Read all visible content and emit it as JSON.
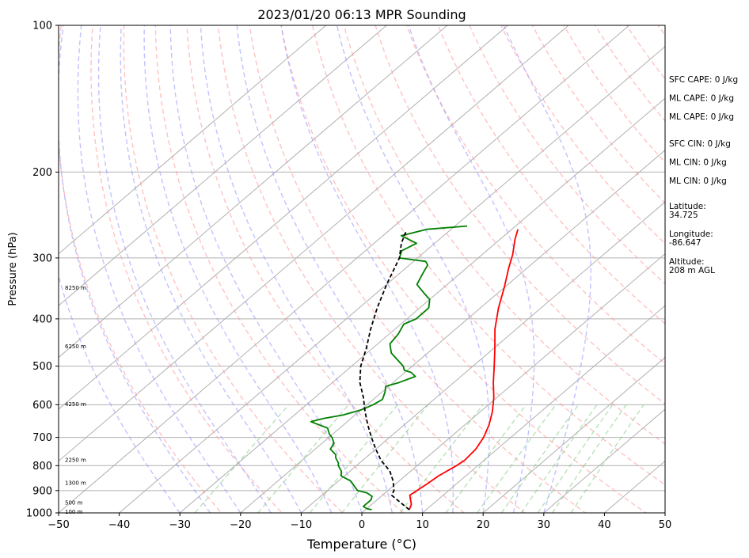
{
  "chart_data": {
    "type": "line",
    "title": "2023/01/20 06:13 MPR Sounding",
    "xlabel": "Temperature (°C)",
    "ylabel": "Pressure (hPa)",
    "xlim": [
      -50,
      50
    ],
    "ylim": [
      1000,
      100
    ],
    "y_scale": "log",
    "x_ticks": [
      "−50",
      "−40",
      "−30",
      "−20",
      "−10",
      "0",
      "10",
      "20",
      "30",
      "40",
      "50"
    ],
    "y_ticks": [
      "1000",
      "900",
      "800",
      "700",
      "600",
      "500",
      "400",
      "300",
      "200",
      "100"
    ],
    "grid": true,
    "series": [
      {
        "kind": "temperature",
        "color": "#ff0000",
        "points": [
          [
            7.2,
            985
          ],
          [
            6.5,
            960
          ],
          [
            5.5,
            940
          ],
          [
            4.5,
            920
          ],
          [
            4.8,
            900
          ],
          [
            5.2,
            870
          ],
          [
            5.5,
            840
          ],
          [
            6.5,
            800
          ],
          [
            6.8,
            780
          ],
          [
            6.5,
            740
          ],
          [
            5.5,
            700
          ],
          [
            4.0,
            660
          ],
          [
            2.0,
            620
          ],
          [
            -0.5,
            580
          ],
          [
            -3.5,
            540
          ],
          [
            -6.5,
            500
          ],
          [
            -9.8,
            460
          ],
          [
            -13.5,
            420
          ],
          [
            -17,
            380
          ],
          [
            -20,
            345
          ],
          [
            -23,
            315
          ],
          [
            -25,
            295
          ],
          [
            -27.5,
            275
          ],
          [
            -29,
            262
          ]
        ]
      },
      {
        "kind": "dewpoint",
        "color": "#008000",
        "points": [
          [
            1,
            985
          ],
          [
            0,
            980
          ],
          [
            -1,
            970
          ],
          [
            -1,
            960
          ],
          [
            -1,
            950
          ],
          [
            -1,
            940
          ],
          [
            -1.5,
            925
          ],
          [
            -3,
            910
          ],
          [
            -5,
            900
          ],
          [
            -6.5,
            880
          ],
          [
            -8,
            860
          ],
          [
            -10.5,
            840
          ],
          [
            -11.5,
            820
          ],
          [
            -13,
            800
          ],
          [
            -13.5,
            790
          ],
          [
            -15,
            770
          ],
          [
            -15.5,
            760
          ],
          [
            -17.5,
            740
          ],
          [
            -18,
            720
          ],
          [
            -19.5,
            700
          ],
          [
            -20.5,
            690
          ],
          [
            -22,
            670
          ],
          [
            -26,
            650
          ],
          [
            -24.5,
            640
          ],
          [
            -22,
            630
          ],
          [
            -20,
            615
          ],
          [
            -19,
            600
          ],
          [
            -18.5,
            585
          ],
          [
            -19.5,
            565
          ],
          [
            -20.5,
            550
          ],
          [
            -19,
            540
          ],
          [
            -17.5,
            525
          ],
          [
            -19,
            515
          ],
          [
            -20.5,
            510
          ],
          [
            -21.5,
            500
          ],
          [
            -26,
            470
          ],
          [
            -28,
            450
          ],
          [
            -28.5,
            430
          ],
          [
            -29.5,
            410
          ],
          [
            -28.5,
            400
          ],
          [
            -28.5,
            380
          ],
          [
            -30,
            365
          ],
          [
            -32,
            355
          ],
          [
            -35,
            340
          ],
          [
            -36,
            325
          ],
          [
            -37,
            310
          ],
          [
            -38,
            305
          ],
          [
            -43,
            300
          ],
          [
            -44,
            290
          ],
          [
            -43,
            280
          ],
          [
            -45,
            275
          ],
          [
            -47,
            270
          ],
          [
            -44,
            262
          ],
          [
            -38,
            258
          ]
        ]
      },
      {
        "kind": "parcel-profile",
        "color": "#000000",
        "dashed": true,
        "points": [
          [
            7.2,
            985
          ],
          [
            1.5,
            920
          ],
          [
            1.0,
            900
          ],
          [
            -1.0,
            860
          ],
          [
            -3.5,
            820
          ],
          [
            -7,
            780
          ],
          [
            -10,
            740
          ],
          [
            -13,
            700
          ],
          [
            -16,
            660
          ],
          [
            -19,
            620
          ],
          [
            -22,
            580
          ],
          [
            -25.5,
            540
          ],
          [
            -28.5,
            500
          ],
          [
            -31,
            460
          ],
          [
            -34,
            420
          ],
          [
            -37,
            380
          ],
          [
            -40,
            340
          ],
          [
            -43,
            300
          ],
          [
            -45.5,
            280
          ],
          [
            -47,
            265
          ]
        ]
      }
    ],
    "background_lines": {
      "isotherms_skewed_c": [
        -100,
        -90,
        -80,
        -70,
        -60,
        -50,
        -40,
        -30,
        -20,
        -10,
        0,
        10,
        20,
        30,
        40,
        50
      ],
      "dry_adiabats_theta_k": [
        250,
        260,
        270,
        280,
        290,
        300,
        310,
        320,
        330,
        340,
        350,
        360,
        370,
        380,
        390,
        400,
        410,
        420,
        430,
        440
      ],
      "moist_adiabats_start_c": [
        -30,
        -25,
        -20,
        -15,
        -10,
        -5,
        0,
        5,
        10,
        15,
        20,
        25,
        30
      ],
      "mixing_ratio_lines_g_kg": [
        0.4,
        1,
        2,
        3,
        6,
        10,
        14,
        18,
        22,
        26,
        30,
        36
      ]
    },
    "stats": [
      "SFC CAPE: 0 J/kg",
      "ML CAPE: 0 J/kg",
      "ML CAPE: 0 J/kg",
      "SFC CIN: 0 J/kg",
      "ML CIN: 0 J/kg",
      "ML CIN: 0 J/kg"
    ],
    "location": [
      {
        "label": "Latitude:",
        "value": "34.725"
      },
      {
        "label": "Longitude:",
        "value": "-86.647"
      },
      {
        "label": "Altitude:",
        "value": "208 m AGL"
      }
    ],
    "height_labels": [
      {
        "text": "100 m",
        "p": 995
      },
      {
        "text": "500 m",
        "p": 953
      },
      {
        "text": "1300 m",
        "p": 868
      },
      {
        "text": "2250 m",
        "p": 778
      },
      {
        "text": "4250 m",
        "p": 598
      },
      {
        "text": "6250 m",
        "p": 455
      },
      {
        "text": "8250 m",
        "p": 345
      }
    ]
  }
}
